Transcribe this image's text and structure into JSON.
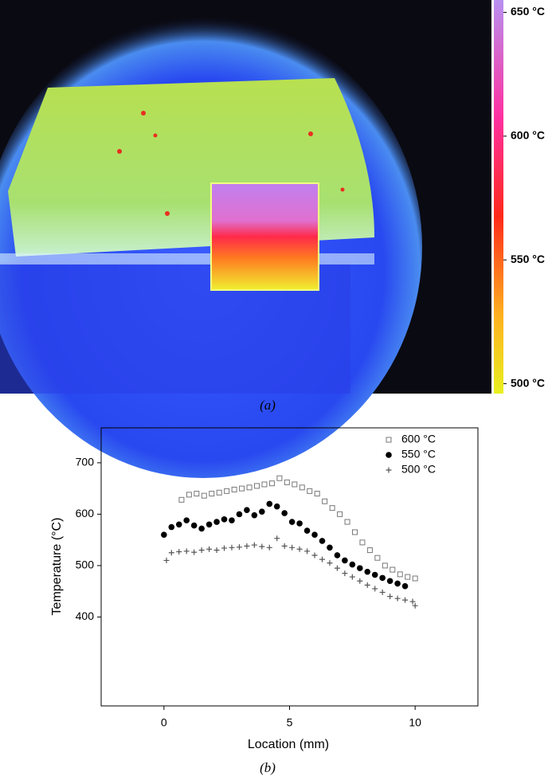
{
  "panel_a": {
    "caption": "(a)",
    "colorbar": {
      "clim": [
        496,
        655
      ],
      "ticks": [
        {
          "value": 650,
          "label": "650 °C"
        },
        {
          "value": 600,
          "label": "600 °C"
        },
        {
          "value": 550,
          "label": "550 °C"
        },
        {
          "value": 500,
          "label": "500 °C"
        }
      ]
    }
  },
  "chart_data": {
    "type": "scatter",
    "caption": "(b)",
    "x_label": "Location (mm)",
    "y_label": "Temperature (°C)",
    "xlim": [
      -2.5,
      12.5
    ],
    "xticks": [
      0,
      5,
      10
    ],
    "ylim": [
      227,
      768
    ],
    "yticks": [
      400,
      500,
      600,
      700
    ],
    "legend": "upper-right",
    "series": [
      {
        "name": "600 °C",
        "color": "#777777",
        "marker": "square",
        "x": [
          0.7,
          1.0,
          1.3,
          1.6,
          1.9,
          2.2,
          2.5,
          2.8,
          3.1,
          3.4,
          3.7,
          4.0,
          4.3,
          4.6,
          4.9,
          5.2,
          5.5,
          5.8,
          6.1,
          6.4,
          6.7,
          7.0,
          7.3,
          7.6,
          7.9,
          8.2,
          8.5,
          8.8,
          9.1,
          9.4,
          9.7,
          10.0
        ],
        "values": [
          628,
          638,
          640,
          636,
          640,
          642,
          645,
          648,
          650,
          652,
          655,
          658,
          660,
          670,
          662,
          658,
          652,
          645,
          640,
          625,
          612,
          600,
          585,
          565,
          545,
          530,
          515,
          500,
          492,
          483,
          478,
          475
        ]
      },
      {
        "name": "550 °C",
        "color": "#000000",
        "marker": "circle",
        "x": [
          0,
          0.3,
          0.6,
          0.9,
          1.2,
          1.5,
          1.8,
          2.1,
          2.4,
          2.7,
          3.0,
          3.3,
          3.6,
          3.9,
          4.2,
          4.5,
          4.8,
          5.1,
          5.4,
          5.7,
          6.0,
          6.3,
          6.6,
          6.9,
          7.2,
          7.5,
          7.8,
          8.1,
          8.4,
          8.7,
          9.0,
          9.3,
          9.6
        ],
        "values": [
          560,
          575,
          580,
          588,
          578,
          572,
          580,
          585,
          590,
          588,
          600,
          608,
          598,
          605,
          620,
          615,
          602,
          585,
          582,
          568,
          560,
          548,
          535,
          520,
          510,
          502,
          495,
          488,
          482,
          476,
          470,
          465,
          460
        ]
      },
      {
        "name": "500 °C",
        "color": "#555555",
        "marker": "plus",
        "x": [
          0.1,
          0.3,
          0.6,
          0.9,
          1.2,
          1.5,
          1.8,
          2.1,
          2.4,
          2.7,
          3.0,
          3.3,
          3.6,
          3.9,
          4.2,
          4.5,
          4.8,
          5.1,
          5.4,
          5.7,
          6.0,
          6.3,
          6.6,
          6.9,
          7.2,
          7.5,
          7.8,
          8.1,
          8.4,
          8.7,
          9.0,
          9.3,
          9.6,
          9.9,
          10.0
        ],
        "values": [
          510,
          525,
          527,
          528,
          526,
          530,
          532,
          530,
          534,
          535,
          536,
          538,
          540,
          537,
          535,
          553,
          538,
          535,
          532,
          528,
          520,
          512,
          505,
          495,
          485,
          478,
          470,
          462,
          455,
          448,
          440,
          436,
          433,
          430,
          422
        ]
      }
    ]
  }
}
